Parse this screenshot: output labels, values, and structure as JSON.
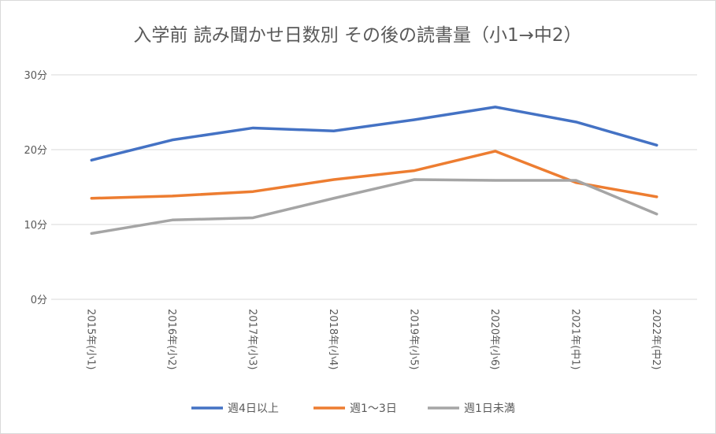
{
  "chart_data": {
    "type": "line",
    "title": "入学前 読み聞かせ日数別 その後の読書量（小1→中2）",
    "categories": [
      "2015年(小1)",
      "2016年(小2)",
      "2017年(小3)",
      "2018年(小4)",
      "2019年(小5)",
      "2020年(小6)",
      "2021年(中1)",
      "2022年(中2)"
    ],
    "yticks": [
      "0分",
      "10分",
      "20分",
      "30分"
    ],
    "ylim": [
      0,
      30
    ],
    "grid": true,
    "legend_position": "bottom",
    "series": [
      {
        "name": "週4日以上",
        "color": "#4472c4",
        "values": [
          18.6,
          21.3,
          22.9,
          22.5,
          24.0,
          25.7,
          23.7,
          20.6
        ]
      },
      {
        "name": "週1～3日",
        "color": "#ed7d31",
        "values": [
          13.5,
          13.8,
          14.4,
          16.0,
          17.2,
          19.8,
          15.6,
          13.7
        ]
      },
      {
        "name": "週1日未満",
        "color": "#a5a5a5",
        "values": [
          8.8,
          10.6,
          10.9,
          13.5,
          16.0,
          15.9,
          15.9,
          11.4
        ]
      }
    ]
  }
}
